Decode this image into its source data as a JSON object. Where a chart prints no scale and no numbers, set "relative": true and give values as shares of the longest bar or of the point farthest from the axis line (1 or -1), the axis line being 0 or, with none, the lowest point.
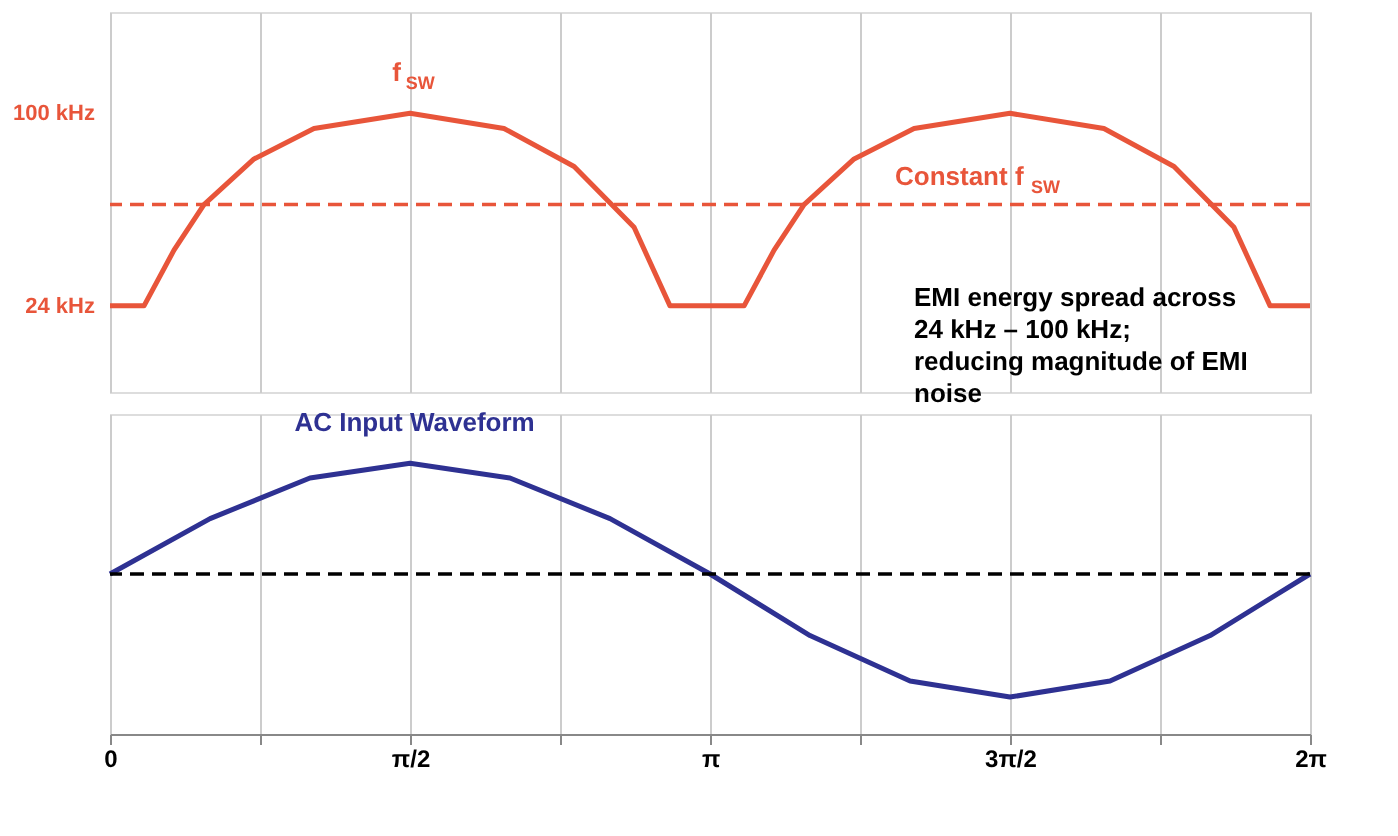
{
  "chart_data": [
    {
      "type": "line",
      "x": [
        0,
        0.178,
        0.335,
        0.492,
        0.754,
        1.068,
        1.571,
        2.063,
        2.43,
        2.744,
        2.932,
        3.32,
        3.477,
        3.634,
        3.896,
        4.21,
        4.712,
        5.204,
        5.571,
        5.885,
        6.074,
        6.283
      ],
      "series": [
        {
          "name": "f$_{SW}$",
          "color": "#e8553a",
          "values": [
            24,
            24,
            46,
            64,
            82,
            94,
            100,
            94,
            79,
            55,
            24,
            24,
            46,
            64,
            82,
            94,
            100,
            94,
            79,
            55,
            24,
            24
          ]
        }
      ],
      "xlim": [
        0,
        6.283
      ],
      "xticks": [
        {
          "value": 0,
          "label": null
        },
        {
          "value": 0.785,
          "label": null
        },
        {
          "value": 1.571,
          "label": null
        },
        {
          "value": 2.356,
          "label": null
        },
        {
          "value": 3.142,
          "label": null
        },
        {
          "value": 3.927,
          "label": null
        },
        {
          "value": 4.712,
          "label": null
        },
        {
          "value": 5.498,
          "label": null
        },
        {
          "value": 6.283,
          "label": null
        }
      ],
      "ylim": [
        -10,
        140
      ],
      "yticks": [
        {
          "value": 24,
          "label": "24 kHz"
        },
        {
          "value": 100,
          "label": "100 kHz"
        }
      ],
      "tick_labels": "y",
      "grid": "x",
      "ref_lines": [
        {
          "axis": "y",
          "value": 64,
          "label": "Constant f$_{SW}$",
          "color": "#e8553a",
          "line_style": "dashed"
        }
      ],
      "annotations": [
        "EMI energy spread across 24 kHz – 100 kHz; reducing magnitude of EMI noise"
      ]
    },
    {
      "type": "line",
      "relative": true,
      "x": [
        0,
        0.524,
        1.047,
        1.571,
        2.094,
        2.618,
        3.142,
        3.665,
        4.189,
        4.712,
        5.236,
        5.76,
        6.283
      ],
      "series": [
        {
          "name": "AC Input Waveform",
          "color": "#2e3192",
          "values": [
            0,
            0.45,
            0.78,
            0.9,
            0.78,
            0.45,
            0,
            -0.5,
            -0.87,
            -1,
            -0.87,
            -0.5,
            0
          ]
        }
      ],
      "xlim": [
        0,
        6.283
      ],
      "xticks": [
        {
          "value": 0,
          "label": "0"
        },
        {
          "value": 0.785,
          "label": null
        },
        {
          "value": 1.571,
          "label": "π/2"
        },
        {
          "value": 2.356,
          "label": null
        },
        {
          "value": 3.142,
          "label": "π"
        },
        {
          "value": 3.927,
          "label": null
        },
        {
          "value": 4.712,
          "label": "3π/2"
        },
        {
          "value": 5.498,
          "label": null
        },
        {
          "value": 6.283,
          "label": "2π"
        }
      ],
      "tick_labels": "x",
      "grid": "x",
      "ref_lines": [
        {
          "axis": "y",
          "value": 0,
          "color": "#000000",
          "line_style": "dashed"
        }
      ]
    }
  ]
}
